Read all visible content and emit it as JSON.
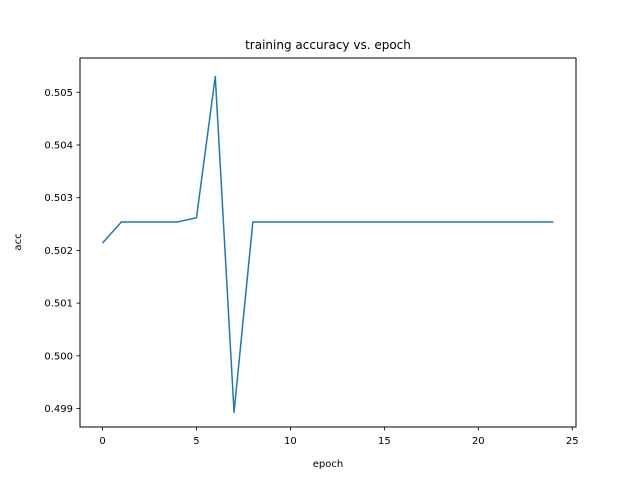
{
  "chart_data": {
    "type": "line",
    "title": "training accuracy vs. epoch",
    "xlabel": "epoch",
    "ylabel": "acc",
    "xlim": [
      -1.2,
      25.2
    ],
    "ylim": [
      0.49865,
      0.50565
    ],
    "grid": false,
    "xticks": [
      0,
      5,
      10,
      15,
      20,
      25
    ],
    "xtick_labels": [
      "0",
      "5",
      "10",
      "15",
      "20",
      "25"
    ],
    "yticks": [
      0.499,
      0.5,
      0.501,
      0.502,
      0.503,
      0.504,
      0.505
    ],
    "ytick_labels": [
      "0.499",
      "0.500",
      "0.501",
      "0.502",
      "0.503",
      "0.504",
      "0.505"
    ],
    "series": [
      {
        "color": "#1f77b4",
        "x": [
          0,
          1,
          2,
          3,
          4,
          5,
          6,
          7,
          8,
          9,
          10,
          11,
          12,
          13,
          14,
          15,
          16,
          17,
          18,
          19,
          20,
          21,
          22,
          23,
          24
        ],
        "values": [
          0.50214,
          0.50254,
          0.50254,
          0.50254,
          0.50254,
          0.50262,
          0.5053,
          0.49893,
          0.50254,
          0.50254,
          0.50254,
          0.50254,
          0.50254,
          0.50254,
          0.50254,
          0.50254,
          0.50254,
          0.50254,
          0.50254,
          0.50254,
          0.50254,
          0.50254,
          0.50254,
          0.50254,
          0.50254
        ]
      }
    ]
  }
}
